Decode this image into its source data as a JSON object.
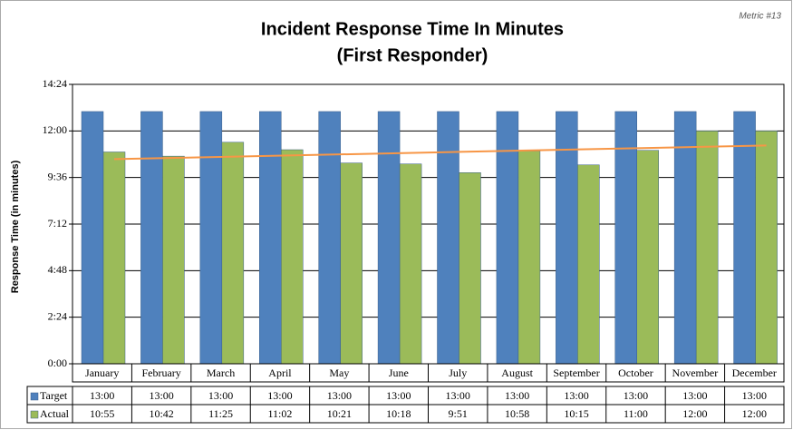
{
  "chart_data": {
    "type": "bar",
    "title": "Incident Response Time In Minutes",
    "subtitle": "(First Responder)",
    "note": "Metric #13",
    "y_label": "Response Time (in minutes)",
    "categories": [
      "January",
      "February",
      "March",
      "April",
      "May",
      "June",
      "July",
      "August",
      "September",
      "October",
      "November",
      "December"
    ],
    "series": [
      {
        "name": "Target",
        "color": "#4f81bd",
        "values": [
          13,
          13,
          13,
          13,
          13,
          13,
          13,
          13,
          13,
          13,
          13,
          13
        ],
        "value_labels": [
          "13:00",
          "13:00",
          "13:00",
          "13:00",
          "13:00",
          "13:00",
          "13:00",
          "13:00",
          "13:00",
          "13:00",
          "13:00",
          "13:00"
        ]
      },
      {
        "name": "Actual",
        "color": "#9bbb59",
        "values": [
          10.9167,
          10.7,
          11.4167,
          11.0333,
          10.35,
          10.3,
          9.85,
          10.9667,
          10.25,
          11,
          12,
          12
        ],
        "value_labels": [
          "10:55",
          "10:42",
          "11:25",
          "11:02",
          "10:21",
          "10:18",
          "9:51",
          "10:58",
          "10:15",
          "11:00",
          "12:00",
          "12:00"
        ]
      }
    ],
    "trendline": {
      "series": 1,
      "color": "#f79646"
    },
    "ylim": [
      0,
      14.4
    ],
    "yticks": [
      {
        "value": 0,
        "label": "0:00"
      },
      {
        "value": 2.4,
        "label": "2:24"
      },
      {
        "value": 4.8,
        "label": "4:48"
      },
      {
        "value": 7.2,
        "label": "7:12"
      },
      {
        "value": 9.6,
        "label": "9:36"
      },
      {
        "value": 12,
        "label": "12:00"
      },
      {
        "value": 14.4,
        "label": "14:24"
      }
    ],
    "grid": true
  }
}
